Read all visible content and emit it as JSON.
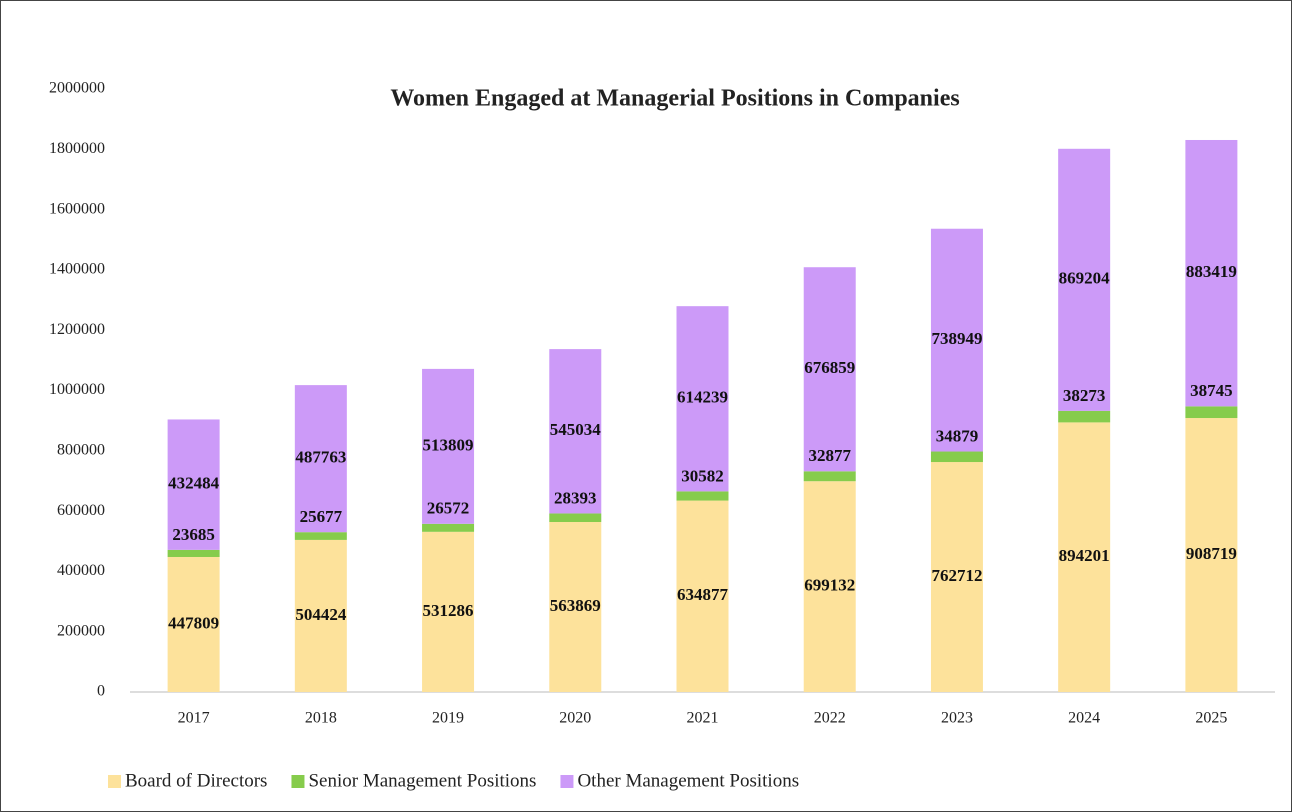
{
  "chart_data": {
    "type": "stacked_bar",
    "title": "Women Engaged at Managerial Positions in Companies",
    "categories": [
      "2017",
      "2018",
      "2019",
      "2020",
      "2021",
      "2022",
      "2023",
      "2024",
      "2025"
    ],
    "series": [
      {
        "name": "Board of Directors",
        "color": "#fde29b",
        "values": [
          447809,
          504424,
          531286,
          563869,
          634877,
          699132,
          762712,
          894201,
          908719
        ]
      },
      {
        "name": "Senior Management Positions",
        "color": "#86cc4c",
        "values": [
          23685,
          25677,
          26572,
          28393,
          30582,
          32877,
          34879,
          38273,
          38745
        ]
      },
      {
        "name": "Other Management Positions",
        "color": "#cc9af8",
        "values": [
          432484,
          487763,
          513809,
          545034,
          614239,
          676859,
          738949,
          869204,
          883419
        ]
      }
    ],
    "ylim": [
      0,
      2000000
    ],
    "yticks": [
      0,
      200000,
      400000,
      600000,
      800000,
      1000000,
      1200000,
      1400000,
      1600000,
      1800000,
      2000000
    ],
    "grid": false,
    "legend": "bottom"
  }
}
